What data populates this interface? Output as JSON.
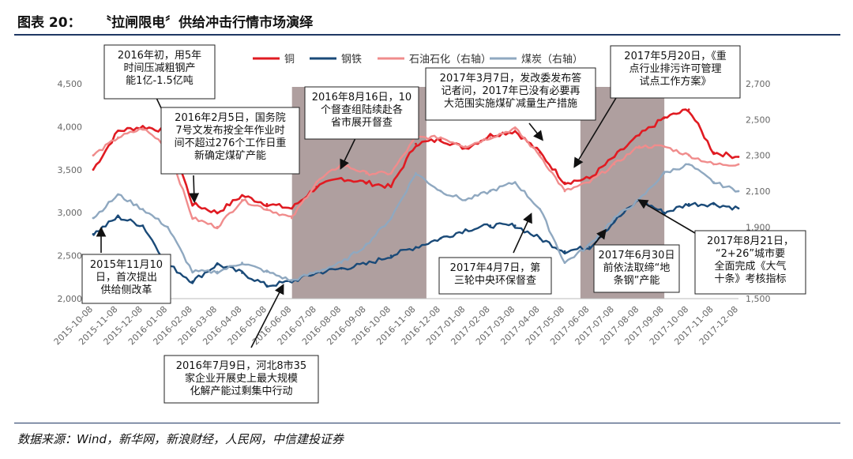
{
  "figure": {
    "number": "图表 20：",
    "title": "〝拉闸限电〞供给冲击行情市场演绎",
    "source": "数据来源：Wind，新华网，新浪财经，人民网，中信建投证券"
  },
  "chart_data": {
    "type": "line",
    "x_labels": [
      "2015-10-08",
      "2015-11-08",
      "2015-12-08",
      "2016-01-08",
      "2016-02-08",
      "2016-03-08",
      "2016-04-08",
      "2016-05-08",
      "2016-06-08",
      "2016-07-08",
      "2016-08-08",
      "2016-09-08",
      "2016-10-08",
      "2016-11-08",
      "2016-12-08",
      "2017-01-08",
      "2017-02-08",
      "2017-03-08",
      "2017-04-08",
      "2017-05-08",
      "2017-06-08",
      "2017-07-08",
      "2017-08-08",
      "2017-09-08",
      "2017-10-08",
      "2017-11-08",
      "2017-12-08"
    ],
    "left_axis": {
      "min": 2000,
      "max": 4500,
      "ticks": [
        "2,000",
        "2,500",
        "3,000",
        "3,500",
        "4,000",
        "4,500"
      ]
    },
    "right_axis": {
      "min": 1500,
      "max": 2700,
      "ticks": [
        "1,500",
        "1,700",
        "1,900",
        "2,100",
        "2,300",
        "2,500",
        "2,700"
      ]
    },
    "shaded_periods": [
      {
        "from": "2016-06-08",
        "to": "2016-11-20"
      },
      {
        "from": "2017-05-28",
        "to": "2017-09-08"
      }
    ],
    "series": [
      {
        "name": "铜",
        "axis": "left",
        "color": "#e01b22",
        "values": [
          3500,
          3950,
          4000,
          3950,
          3100,
          3000,
          3200,
          3100,
          3050,
          3300,
          3400,
          3350,
          3300,
          3800,
          3850,
          3750,
          3900,
          3950,
          3700,
          3350,
          3400,
          3650,
          3900,
          4100,
          4200,
          3700,
          3650
        ]
      },
      {
        "name": "钢铁",
        "axis": "left",
        "color": "#1a4a78",
        "values": [
          2750,
          2950,
          2850,
          2400,
          2200,
          2400,
          2300,
          2150,
          2200,
          2300,
          2350,
          2400,
          2500,
          2600,
          2700,
          2800,
          2850,
          2850,
          2700,
          2550,
          2600,
          2900,
          3150,
          3000,
          3100,
          3100,
          3050
        ]
      },
      {
        "name": "石油石化（右轴）",
        "axis": "right",
        "color": "#f08c8c",
        "values": [
          2300,
          2400,
          2450,
          2350,
          1950,
          1900,
          2050,
          2000,
          1950,
          2150,
          2250,
          2200,
          2200,
          2400,
          2400,
          2350,
          2400,
          2450,
          2300,
          2100,
          2150,
          2250,
          2350,
          2350,
          2300,
          2250,
          2250
        ]
      },
      {
        "name": "煤炭（右轴）",
        "axis": "right",
        "color": "#8fa8c0",
        "values": [
          1950,
          2080,
          2000,
          1900,
          1650,
          1650,
          1700,
          1650,
          1600,
          1650,
          1700,
          1800,
          1950,
          2200,
          2100,
          2050,
          2100,
          2150,
          2000,
          1700,
          1800,
          1950,
          2050,
          2200,
          2250,
          2150,
          2100
        ]
      }
    ],
    "annotations": [
      {
        "id": "a1",
        "lines": [
          "2016年初，用5年",
          "时间压减粗钢产",
          "能1亿-1.5亿吨"
        ]
      },
      {
        "id": "a2",
        "lines": [
          "2016年2月5日，国务院",
          "7号文发布按全年作业时",
          "间不超过276个工作日重",
          "新确定煤矿产能"
        ]
      },
      {
        "id": "a3",
        "lines": [
          "2015年11月10",
          "日，首次提出",
          "供给侧改革"
        ]
      },
      {
        "id": "a4",
        "lines": [
          "2016年8月16日，10",
          "个督查组陆续赴各",
          "省市展开督查"
        ]
      },
      {
        "id": "a5",
        "lines": [
          "2017年3月7日，发改委发布答",
          "记者问，2017年已没有必要再",
          "大范围实施煤矿减量生产措施"
        ]
      },
      {
        "id": "a6",
        "lines": [
          "2017年5月20日，《重",
          "点行业排污许可管理",
          "试点工作方案》"
        ]
      },
      {
        "id": "a7",
        "lines": [
          "2017年4月7日，第",
          "三轮中央环保督查"
        ]
      },
      {
        "id": "a8",
        "lines": [
          "2017年6月30日",
          "前依法取缔“地",
          "条钢”产能"
        ]
      },
      {
        "id": "a9",
        "lines": [
          "2017年8月21日，",
          "“2+26”城市要",
          "全面完成《大气",
          "十条》考核指标"
        ]
      },
      {
        "id": "a10",
        "lines": [
          "2016年7月9日，河北8市35",
          "家企业开展史上最大规模",
          "化解产能过剩集中行动"
        ]
      }
    ]
  }
}
